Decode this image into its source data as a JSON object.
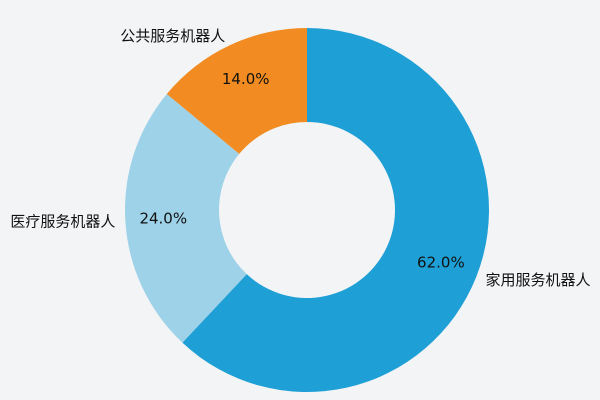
{
  "chart_data": {
    "type": "donut",
    "categories": [
      "家用服务机器人",
      "医疗服务机器人",
      "公共服务机器人"
    ],
    "values": [
      62,
      24,
      14
    ],
    "value_labels": [
      "62.0%",
      "24.0%",
      "14.0%"
    ],
    "colors": [
      "#1e9fd5",
      "#9dd2e8",
      "#f28c22"
    ]
  }
}
